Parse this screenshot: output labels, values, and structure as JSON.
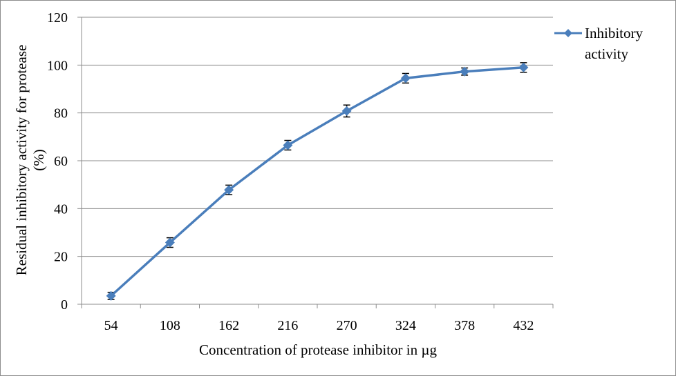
{
  "chart_data": {
    "type": "line",
    "title": "",
    "xlabel": "Concentration of protease inhibitor in µg",
    "ylabel_lines": [
      "Residual inhibitory activity for protease",
      "(%)"
    ],
    "categories": [
      "54",
      "108",
      "162",
      "216",
      "270",
      "324",
      "378",
      "432"
    ],
    "series": [
      {
        "name_lines": [
          "Inhibitory",
          "activity"
        ],
        "values": [
          3.5,
          25.8,
          47.8,
          66.5,
          80.8,
          94.5,
          97.3,
          99.0
        ],
        "errors": [
          1.5,
          2.0,
          2.0,
          2.0,
          2.5,
          2.0,
          1.5,
          2.0
        ],
        "color": "#4a7ebb"
      }
    ],
    "ylim": [
      0,
      120
    ],
    "yticks": [
      "0",
      "20",
      "40",
      "60",
      "80",
      "100",
      "120"
    ],
    "grid": true,
    "legend_position": "right",
    "marker": "diamond",
    "error_bars": true
  }
}
